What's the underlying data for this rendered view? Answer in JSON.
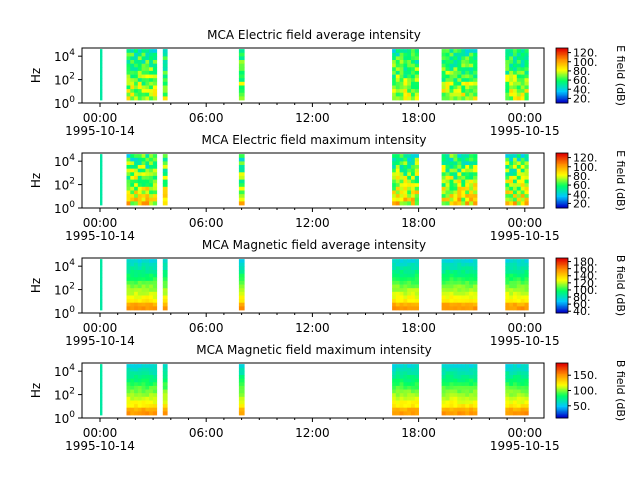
{
  "chart_data": [
    {
      "type": "heatmap",
      "title": "MCA  Electric field average intensity",
      "ylabel": "Hz",
      "y_scale": "log",
      "ylim": [
        1,
        50000
      ],
      "y_ticks": [
        {
          "value": 1,
          "base": "10",
          "exp": "0"
        },
        {
          "value": 100,
          "base": "10",
          "exp": "2"
        },
        {
          "value": 10000,
          "base": "10",
          "exp": "4"
        }
      ],
      "x_ticks": [
        "00:00",
        "06:00",
        "12:00",
        "18:00",
        "00:00"
      ],
      "x_tick_hours": [
        0,
        6,
        12,
        18,
        24
      ],
      "date_labels": [
        {
          "text": "1995-10-14",
          "hour": 0
        },
        {
          "text": "1995-10-15",
          "hour": 24
        }
      ],
      "colorbar": {
        "label": "E field (dB)",
        "ticks": [
          "20.",
          "40.",
          "60.",
          "80.",
          "100.",
          "120."
        ],
        "tick_values": [
          20,
          40,
          60,
          80,
          100,
          120
        ],
        "range": [
          10,
          130
        ]
      },
      "colorscale": [
        "#0000c8",
        "#00c8ff",
        "#00ff64",
        "#ffff00",
        "#ff8c00",
        "#e00000"
      ],
      "segments_hours": [
        [
          0.0,
          0.07
        ],
        [
          1.5,
          3.2
        ],
        [
          3.55,
          3.8
        ],
        [
          7.85,
          8.15
        ],
        [
          16.5,
          18.0
        ],
        [
          19.3,
          21.3
        ],
        [
          22.9,
          24.2
        ]
      ],
      "base_level": "medium"
    },
    {
      "type": "heatmap",
      "title": "MCA  Electric field maximum intensity",
      "ylabel": "Hz",
      "y_scale": "log",
      "ylim": [
        1,
        50000
      ],
      "y_ticks": [
        {
          "value": 1,
          "base": "10",
          "exp": "0"
        },
        {
          "value": 100,
          "base": "10",
          "exp": "2"
        },
        {
          "value": 10000,
          "base": "10",
          "exp": "4"
        }
      ],
      "x_ticks": [
        "00:00",
        "06:00",
        "12:00",
        "18:00",
        "00:00"
      ],
      "x_tick_hours": [
        0,
        6,
        12,
        18,
        24
      ],
      "date_labels": [
        {
          "text": "1995-10-14",
          "hour": 0
        },
        {
          "text": "1995-10-15",
          "hour": 24
        }
      ],
      "colorbar": {
        "label": "E field (dB)",
        "ticks": [
          "20.",
          "40.",
          "60.",
          "80.",
          "100.",
          "120."
        ],
        "tick_values": [
          20,
          40,
          60,
          80,
          100,
          120
        ],
        "range": [
          10,
          130
        ]
      },
      "colorscale": [
        "#0000c8",
        "#00c8ff",
        "#00ff64",
        "#ffff00",
        "#ff8c00",
        "#e00000"
      ],
      "segments_hours": [
        [
          0.0,
          0.07
        ],
        [
          1.5,
          3.2
        ],
        [
          3.55,
          3.8
        ],
        [
          7.85,
          8.15
        ],
        [
          16.5,
          18.0
        ],
        [
          19.3,
          21.3
        ],
        [
          22.9,
          24.2
        ]
      ],
      "base_level": "high"
    },
    {
      "type": "heatmap",
      "title": "MCA  Magnetic field average intensity",
      "ylabel": "Hz",
      "y_scale": "log",
      "ylim": [
        1,
        50000
      ],
      "y_ticks": [
        {
          "value": 1,
          "base": "10",
          "exp": "0"
        },
        {
          "value": 100,
          "base": "10",
          "exp": "2"
        },
        {
          "value": 10000,
          "base": "10",
          "exp": "4"
        }
      ],
      "x_ticks": [
        "00:00",
        "06:00",
        "12:00",
        "18:00",
        "00:00"
      ],
      "x_tick_hours": [
        0,
        6,
        12,
        18,
        24
      ],
      "date_labels": [
        {
          "text": "1995-10-14",
          "hour": 0
        },
        {
          "text": "1995-10-15",
          "hour": 24
        }
      ],
      "colorbar": {
        "label": "B field (dB)",
        "ticks": [
          "40.",
          "60.",
          "80.",
          "100.",
          "120.",
          "140.",
          "160.",
          "180."
        ],
        "tick_values": [
          40,
          60,
          80,
          100,
          120,
          140,
          160,
          180
        ],
        "range": [
          35,
          190
        ]
      },
      "colorscale": [
        "#0000c8",
        "#00c8ff",
        "#00ff64",
        "#ffff00",
        "#ff8c00",
        "#e00000"
      ],
      "segments_hours": [
        [
          0.0,
          0.07
        ],
        [
          1.5,
          3.2
        ],
        [
          3.55,
          3.8
        ],
        [
          7.85,
          8.15
        ],
        [
          16.5,
          18.0
        ],
        [
          19.3,
          21.3
        ],
        [
          22.9,
          24.2
        ]
      ],
      "base_level": "magnetic"
    },
    {
      "type": "heatmap",
      "title": "MCA  Magnetic field maximum intensity",
      "ylabel": "Hz",
      "y_scale": "log",
      "ylim": [
        1,
        50000
      ],
      "y_ticks": [
        {
          "value": 1,
          "base": "10",
          "exp": "0"
        },
        {
          "value": 100,
          "base": "10",
          "exp": "2"
        },
        {
          "value": 10000,
          "base": "10",
          "exp": "4"
        }
      ],
      "x_ticks": [
        "00:00",
        "06:00",
        "12:00",
        "18:00",
        "00:00"
      ],
      "x_tick_hours": [
        0,
        6,
        12,
        18,
        24
      ],
      "date_labels": [
        {
          "text": "1995-10-14",
          "hour": 0
        },
        {
          "text": "1995-10-15",
          "hour": 24
        }
      ],
      "colorbar": {
        "label": "B field (dB)",
        "ticks": [
          "50.",
          "100.",
          "150."
        ],
        "tick_values": [
          50,
          100,
          150
        ],
        "range": [
          10,
          190
        ]
      },
      "colorscale": [
        "#0000c8",
        "#00c8ff",
        "#00ff64",
        "#ffff00",
        "#ff8c00",
        "#e00000"
      ],
      "segments_hours": [
        [
          0.0,
          0.07
        ],
        [
          1.5,
          3.2
        ],
        [
          3.55,
          3.8
        ],
        [
          7.85,
          8.15
        ],
        [
          16.5,
          18.0
        ],
        [
          19.3,
          21.3
        ],
        [
          22.9,
          24.2
        ]
      ],
      "base_level": "magnetic"
    }
  ]
}
